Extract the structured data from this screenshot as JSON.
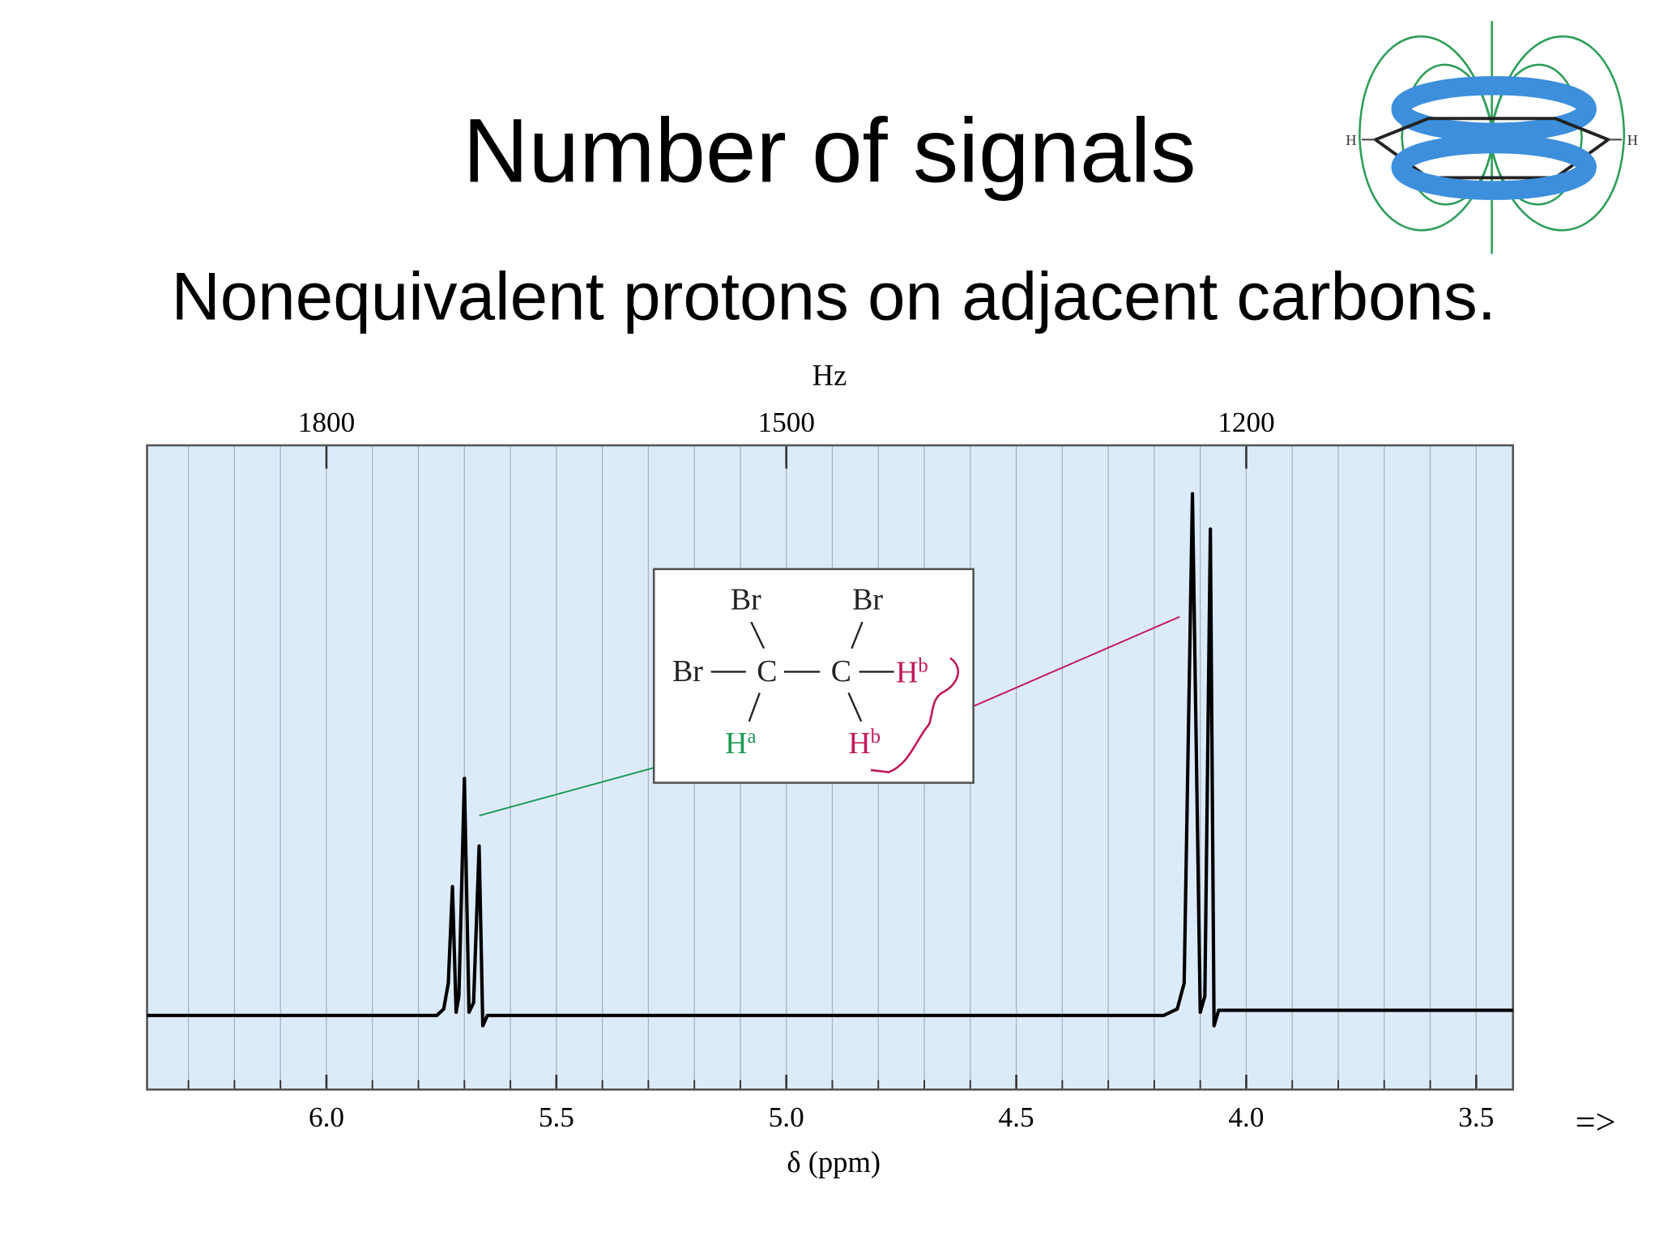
{
  "chart_data": {
    "type": "line",
    "title": "Number of signals",
    "subtitle": "Nonequivalent protons on adjacent carbons.",
    "xlabel": "δ (ppm)",
    "x2label": "Hz",
    "x": [
      6.39,
      5.76,
      5.745,
      5.735,
      5.726,
      5.718,
      5.712,
      5.7,
      5.69,
      5.68,
      5.668,
      5.66,
      5.65,
      4.18,
      4.15,
      4.135,
      4.117,
      4.1,
      4.09,
      4.078,
      4.07,
      4.06,
      3.42
    ],
    "values": [
      0,
      0,
      1,
      5,
      20,
      0.5,
      3,
      36.8,
      0.5,
      2,
      26.3,
      -1.6,
      0,
      0,
      1,
      5,
      81,
      0.5,
      3,
      75.5,
      -1.6,
      0.8,
      0.8
    ],
    "color": "#000000",
    "xlim": [
      6.39,
      3.42
    ],
    "ylim": [
      -11.5,
      88.5
    ],
    "xticks": [
      {
        "value": 6,
        "label": "6.0"
      },
      5.5,
      {
        "value": 5,
        "label": "5.0"
      },
      4.5,
      {
        "value": 4,
        "label": "4.0"
      },
      3.5
    ],
    "xminor": [
      6.3,
      6.2,
      6.1,
      6,
      5.9,
      5.8,
      5.7,
      5.6,
      5.5,
      5.4,
      5.3,
      5.2,
      5.1,
      5,
      4.9,
      4.8,
      4.7,
      4.6,
      4.5,
      4.4,
      4.3,
      4.2,
      4.1,
      4,
      3.9,
      3.8,
      3.7,
      3.6,
      3.5
    ],
    "x2lim": [
      1917,
      1026
    ],
    "x2ticks": [
      1800,
      1500,
      1200
    ],
    "grid": true,
    "inset": {
      "labels": [
        "Br",
        "Br",
        "Br",
        "C",
        "C"
      ],
      "protons": [
        {
          "text": "H",
          "sup": "b",
          "color": "#c2185b"
        },
        {
          "text": "H",
          "sup": "a",
          "color": "#1b9a55"
        },
        {
          "text": "H",
          "sup": "b",
          "color": "#c2185b"
        }
      ]
    }
  },
  "figure": {
    "labels": [
      "H",
      "H"
    ]
  },
  "nav": "=>"
}
